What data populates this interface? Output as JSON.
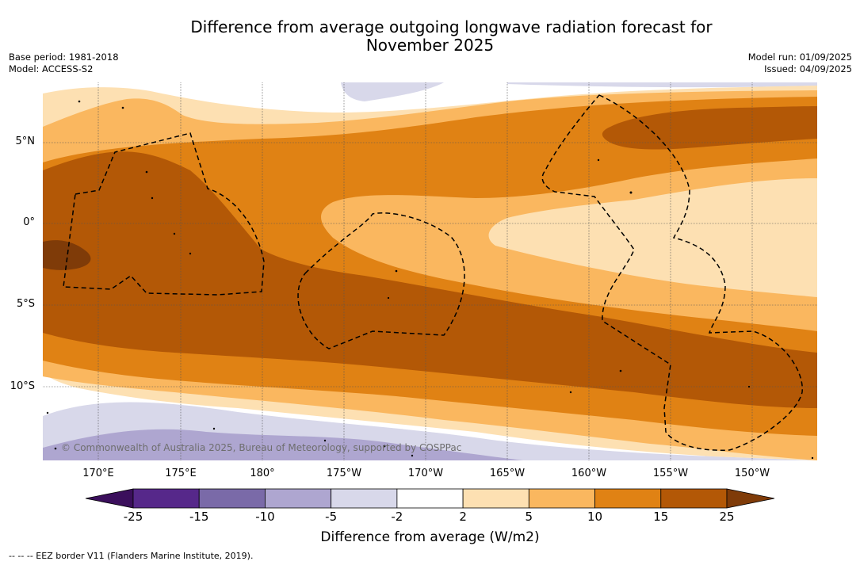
{
  "title": {
    "line1": "Difference from average outgoing longwave radiation forecast for",
    "line2": "November 2025"
  },
  "meta_left": {
    "base_period": "Base period: 1981-2018",
    "model": "Model: ACCESS-S2"
  },
  "meta_right": {
    "model_run": "Model run: 01/09/2025",
    "issued": "Issued: 04/09/2025"
  },
  "lat_labels": [
    "5°N",
    "0°",
    "5°S",
    "10°S"
  ],
  "lon_labels": [
    "170°E",
    "175°E",
    "180°",
    "175°W",
    "170°W",
    "165°W",
    "160°W",
    "155°W",
    "150°W"
  ],
  "colorbar": {
    "ticks": [
      "-25",
      "-15",
      "-10",
      "-5",
      "-2",
      "2",
      "5",
      "10",
      "15",
      "25"
    ],
    "colors": [
      "#3b0f5c",
      "#56288a",
      "#7a6aa8",
      "#aea6d0",
      "#d8d8ea",
      "#ffffff",
      "#fde0b2",
      "#fab75f",
      "#e08214",
      "#b35806",
      "#7f3b08"
    ],
    "label": "Difference from average (W/m2)"
  },
  "copyright": "© Commonwealth of Australia 2025, Bureau of Meteorology, supported by COSPPac",
  "eez_legend": "-- -- -- EEZ border V11 (Flanders Marine Institute, 2019)."
}
